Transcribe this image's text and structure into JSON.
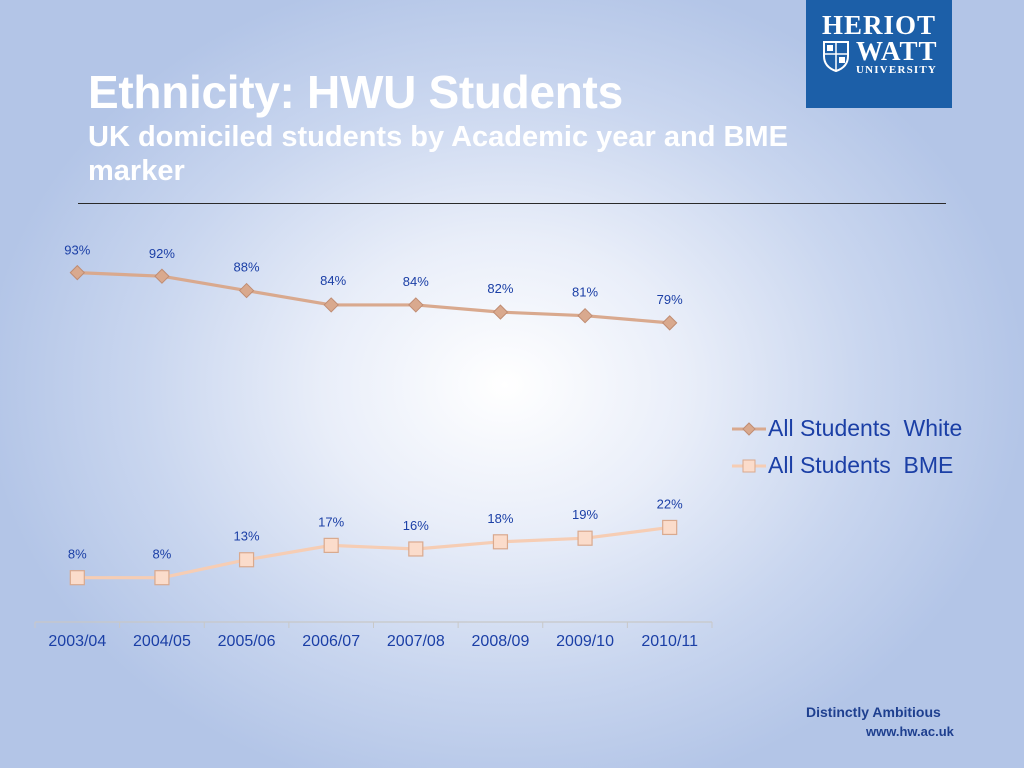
{
  "slide": {
    "title": "Ethnicity: HWU Students",
    "subtitle": "UK domiciled students by Academic year and BME marker"
  },
  "logo": {
    "line1": "HERIOT",
    "line2": "WATT",
    "line3": "UNIVERSITY",
    "color": "#1c5fa8"
  },
  "footer": {
    "tagline": "Distinctly Ambitious",
    "url": "www.hw.ac.uk"
  },
  "chart_data": {
    "type": "line",
    "categories": [
      "2003/04",
      "2004/05",
      "2005/06",
      "2006/07",
      "2007/08",
      "2008/09",
      "2009/10",
      "2010/11"
    ],
    "series": [
      {
        "name": "All Students  White",
        "values": [
          93,
          92,
          88,
          84,
          84,
          82,
          81,
          79
        ],
        "labels": [
          "93%",
          "92%",
          "88%",
          "84%",
          "84%",
          "82%",
          "81%",
          "79%"
        ],
        "color": "#d9a98e",
        "marker": "diamond"
      },
      {
        "name": "All Students  BME",
        "values": [
          8,
          8,
          13,
          17,
          16,
          18,
          19,
          22
        ],
        "labels": [
          "8%",
          "8%",
          "13%",
          "17%",
          "16%",
          "18%",
          "19%",
          "22%"
        ],
        "color": "#f6cdb4",
        "marker": "square"
      }
    ],
    "legend_position": "right",
    "grid": false,
    "label_color": "#1b3fa6"
  }
}
